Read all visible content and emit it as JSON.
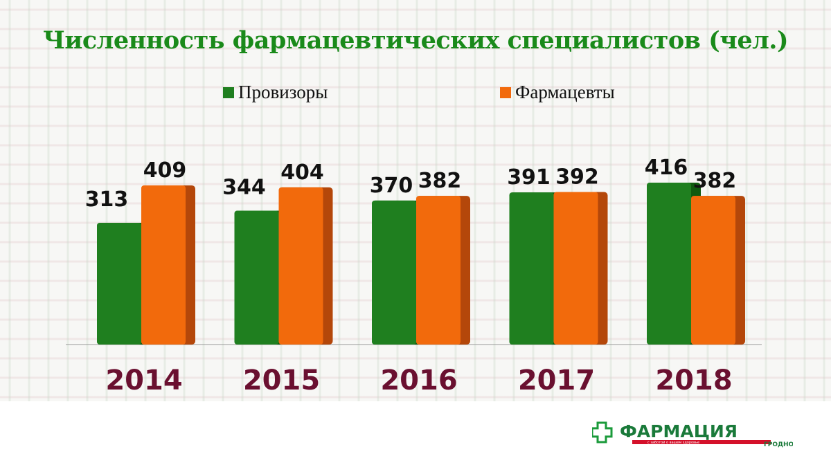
{
  "chart_data": {
    "type": "bar",
    "title": "Численность фармацевтических специалистов (чел.)",
    "categories": [
      "2014",
      "2015",
      "2016",
      "2017",
      "2018"
    ],
    "series": [
      {
        "name": "Провизоры",
        "color": "#1f7f1f",
        "values": [
          313,
          344,
          370,
          391,
          416
        ]
      },
      {
        "name": "Фармацевты",
        "color": "#f26a0c",
        "values": [
          409,
          404,
          382,
          392,
          382
        ]
      }
    ],
    "xlabel": "",
    "ylabel": "",
    "ylim": [
      0,
      500
    ],
    "grid": false,
    "legend": "top-center"
  },
  "logo": {
    "name": "ФАРМАЦИЯ",
    "tagline": "с заботой о вашем здоровье",
    "city": "ГРОДНО"
  }
}
